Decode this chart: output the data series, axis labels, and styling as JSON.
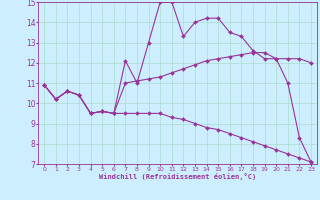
{
  "xlabel": "Windchill (Refroidissement éolien,°C)",
  "bg_color": "#cceeff",
  "line_color": "#993399",
  "grid_color": "#aaddcc",
  "xlim": [
    -0.5,
    23.5
  ],
  "ylim": [
    7,
    15
  ],
  "xticks": [
    0,
    1,
    2,
    3,
    4,
    5,
    6,
    7,
    8,
    9,
    10,
    11,
    12,
    13,
    14,
    15,
    16,
    17,
    18,
    19,
    20,
    21,
    22,
    23
  ],
  "yticks": [
    7,
    8,
    9,
    10,
    11,
    12,
    13,
    14,
    15
  ],
  "series1_x": [
    0,
    1,
    2,
    3,
    4,
    5,
    6,
    7,
    8,
    9,
    10,
    11,
    12,
    13,
    14,
    15,
    16,
    17,
    18,
    19,
    20,
    21,
    22,
    23
  ],
  "series1_y": [
    10.9,
    10.2,
    10.6,
    10.4,
    9.5,
    9.6,
    9.5,
    9.5,
    9.5,
    9.5,
    9.5,
    9.3,
    9.2,
    9.0,
    8.8,
    8.7,
    8.5,
    8.3,
    8.1,
    7.9,
    7.7,
    7.5,
    7.3,
    7.1
  ],
  "series2_x": [
    0,
    1,
    2,
    3,
    4,
    5,
    6,
    7,
    8,
    9,
    10,
    11,
    12,
    13,
    14,
    15,
    16,
    17,
    18,
    19,
    20,
    21,
    22,
    23
  ],
  "series2_y": [
    10.9,
    10.2,
    10.6,
    10.4,
    9.5,
    9.6,
    9.5,
    11.0,
    11.1,
    11.2,
    11.3,
    11.5,
    11.7,
    11.9,
    12.1,
    12.2,
    12.3,
    12.4,
    12.5,
    12.5,
    12.2,
    12.2,
    12.2,
    12.0
  ],
  "series3_x": [
    0,
    1,
    2,
    3,
    4,
    5,
    6,
    7,
    8,
    9,
    10,
    11,
    12,
    13,
    14,
    15,
    16,
    17,
    18,
    19,
    20,
    21,
    22,
    23
  ],
  "series3_y": [
    10.9,
    10.2,
    10.6,
    10.4,
    9.5,
    9.6,
    9.5,
    12.1,
    11.0,
    13.0,
    15.0,
    15.0,
    13.3,
    14.0,
    14.2,
    14.2,
    13.5,
    13.3,
    12.6,
    12.2,
    12.2,
    11.0,
    8.3,
    7.1
  ]
}
